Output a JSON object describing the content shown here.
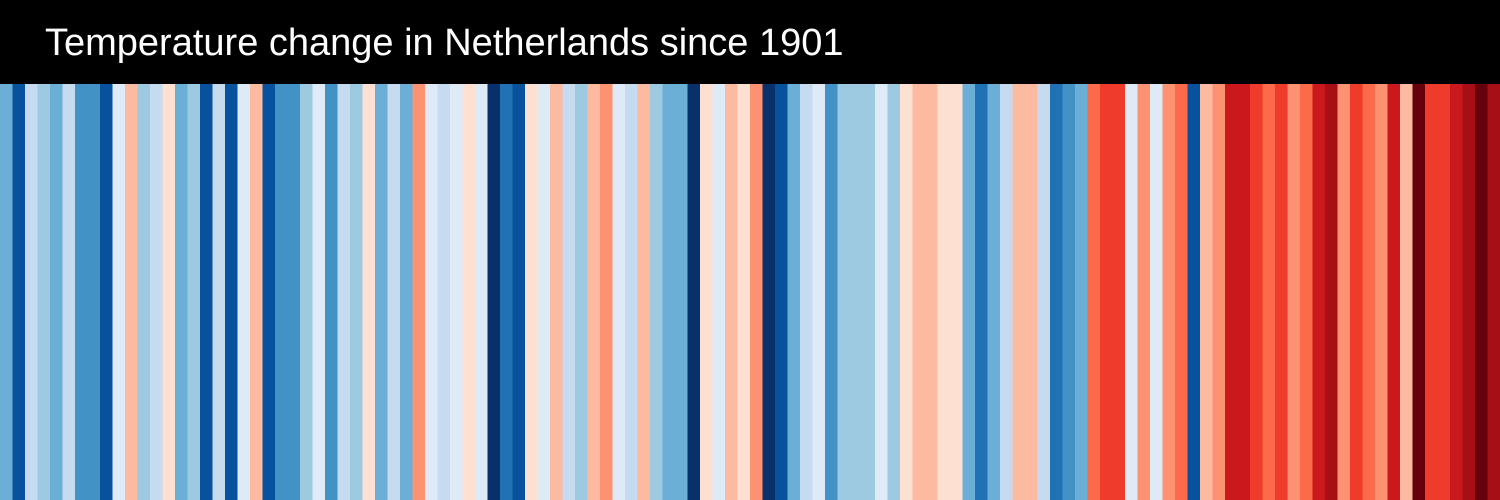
{
  "chart_data": {
    "type": "stripes",
    "title": "Temperature change in Netherlands since 1901",
    "values": [
      -0.7,
      -1.3,
      -0.3,
      -0.5,
      -0.7,
      -0.3,
      -0.9,
      -0.9,
      -1.3,
      -0.1,
      0.3,
      -0.5,
      -0.3,
      0.1,
      -0.7,
      -0.5,
      -1.3,
      -0.3,
      -1.3,
      -0.1,
      0.3,
      -1.3,
      -0.9,
      -0.9,
      -0.5,
      -0.1,
      -0.9,
      -0.3,
      -0.5,
      0.1,
      -0.7,
      -0.3,
      -0.7,
      0.5,
      -0.1,
      -0.3,
      -0.1,
      0.1,
      -0.1,
      -1.5,
      -1.1,
      -1.3,
      0.1,
      -0.1,
      0.3,
      -0.3,
      -0.5,
      0.3,
      0.5,
      -0.1,
      -0.3,
      0.3,
      -0.5,
      -0.7,
      -0.7,
      -1.5,
      0.1,
      -0.1,
      0.3,
      0.1,
      0.5,
      -1.5,
      -1.3,
      -0.7,
      -0.3,
      -0.1,
      -0.9,
      -0.5,
      -0.5,
      -0.5,
      -0.1,
      -0.5,
      0.1,
      0.3,
      0.3,
      0.1,
      0.1,
      -0.7,
      -1.1,
      -0.7,
      -0.3,
      0.3,
      0.3,
      -0.3,
      -1.1,
      -0.9,
      -0.7,
      0.7,
      0.9,
      0.9,
      -0.1,
      0.5,
      -0.1,
      0.5,
      0.7,
      -1.3,
      0.3,
      0.5,
      1.1,
      1.1,
      0.9,
      0.7,
      0.9,
      0.5,
      0.7,
      1.1,
      1.3,
      0.5,
      0.9,
      0.7,
      0.5,
      1.1,
      0.3,
      1.5,
      0.9,
      0.9,
      1.1,
      1.3,
      1.5,
      1.3
    ],
    "vlim": [
      -1.6,
      1.6
    ],
    "colors": [
      "#08306b",
      "#08519c",
      "#2171b5",
      "#4292c6",
      "#6baed6",
      "#9ecae1",
      "#c6dbef",
      "#deebf7",
      "#fee0d2",
      "#fcbba1",
      "#fc9272",
      "#fb6a4a",
      "#ef3b2c",
      "#cb181d",
      "#a50f15",
      "#67000d"
    ]
  }
}
